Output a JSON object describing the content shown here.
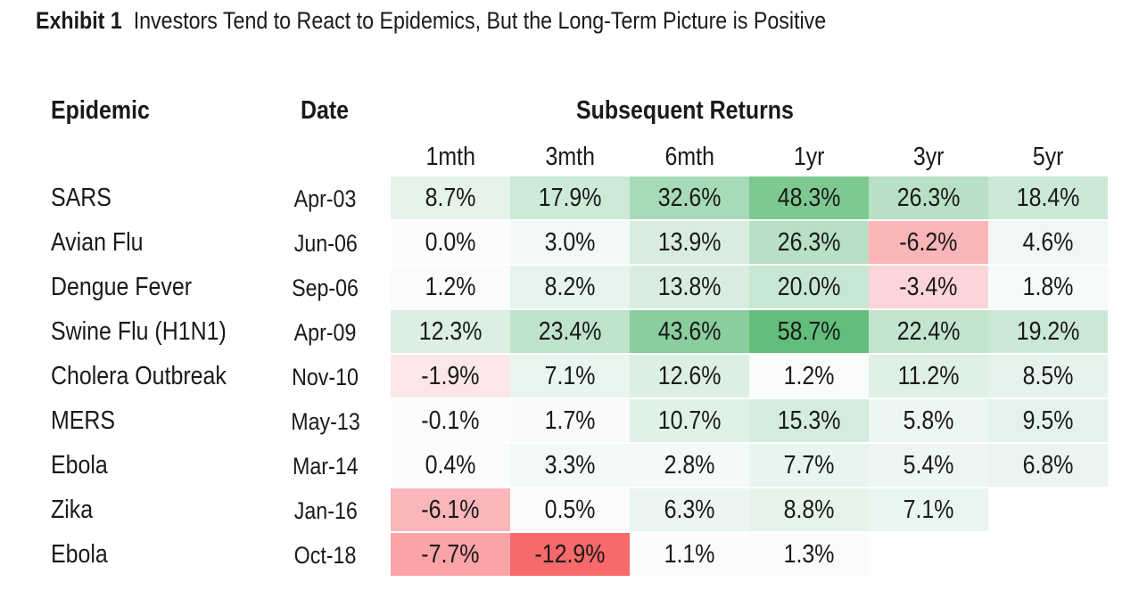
{
  "exhibit": {
    "label": "Exhibit 1",
    "title": "Investors Tend to React to Epidemics, But the Long-Term Picture is Positive"
  },
  "headers": {
    "epidemic": "Epidemic",
    "date": "Date",
    "group": "Subsequent Returns"
  },
  "chart_data": {
    "type": "table",
    "title": "Investors Tend to React to Epidemics, But the Long-Term Picture is Positive",
    "columns": [
      "1mth",
      "3mth",
      "6mth",
      "1yr",
      "3yr",
      "5yr"
    ],
    "rows": [
      {
        "epidemic": "SARS",
        "date": "Apr-03",
        "values": [
          8.7,
          17.9,
          32.6,
          48.3,
          26.3,
          18.4
        ],
        "labels": [
          "8.7%",
          "17.9%",
          "32.6%",
          "48.3%",
          "26.3%",
          "18.4%"
        ]
      },
      {
        "epidemic": "Avian Flu",
        "date": "Jun-06",
        "values": [
          0.0,
          3.0,
          13.9,
          26.3,
          -6.2,
          4.6
        ],
        "labels": [
          "0.0%",
          "3.0%",
          "13.9%",
          "26.3%",
          "-6.2%",
          "4.6%"
        ]
      },
      {
        "epidemic": "Dengue Fever",
        "date": "Sep-06",
        "values": [
          1.2,
          8.2,
          13.8,
          20.0,
          -3.4,
          1.8
        ],
        "labels": [
          "1.2%",
          "8.2%",
          "13.8%",
          "20.0%",
          "-3.4%",
          "1.8%"
        ]
      },
      {
        "epidemic": "Swine Flu (H1N1)",
        "date": "Apr-09",
        "values": [
          12.3,
          23.4,
          43.6,
          58.7,
          22.4,
          19.2
        ],
        "labels": [
          "12.3%",
          "23.4%",
          "43.6%",
          "58.7%",
          "22.4%",
          "19.2%"
        ]
      },
      {
        "epidemic": "Cholera Outbreak",
        "date": "Nov-10",
        "values": [
          -1.9,
          7.1,
          12.6,
          1.2,
          11.2,
          8.5
        ],
        "labels": [
          "-1.9%",
          "7.1%",
          "12.6%",
          "1.2%",
          "11.2%",
          "8.5%"
        ]
      },
      {
        "epidemic": "MERS",
        "date": "May-13",
        "values": [
          -0.1,
          1.7,
          10.7,
          15.3,
          5.8,
          9.5
        ],
        "labels": [
          "-0.1%",
          "1.7%",
          "10.7%",
          "15.3%",
          "5.8%",
          "9.5%"
        ]
      },
      {
        "epidemic": "Ebola",
        "date": "Mar-14",
        "values": [
          0.4,
          3.3,
          2.8,
          7.7,
          5.4,
          6.8
        ],
        "labels": [
          "0.4%",
          "3.3%",
          "2.8%",
          "7.7%",
          "5.4%",
          "6.8%"
        ]
      },
      {
        "epidemic": "Zika",
        "date": "Jan-16",
        "values": [
          -6.1,
          0.5,
          6.3,
          8.8,
          7.1,
          null
        ],
        "labels": [
          "-6.1%",
          "0.5%",
          "6.3%",
          "8.8%",
          "7.1%",
          ""
        ]
      },
      {
        "epidemic": "Ebola",
        "date": "Oct-18",
        "values": [
          -7.7,
          -12.9,
          1.1,
          1.3,
          null,
          null
        ],
        "labels": [
          "-7.7%",
          "-12.9%",
          "1.1%",
          "1.3%",
          "",
          ""
        ]
      }
    ],
    "color_scale": {
      "negative": "#f8696b",
      "neutral": "#fcfcff",
      "positive": "#63be7b"
    }
  }
}
